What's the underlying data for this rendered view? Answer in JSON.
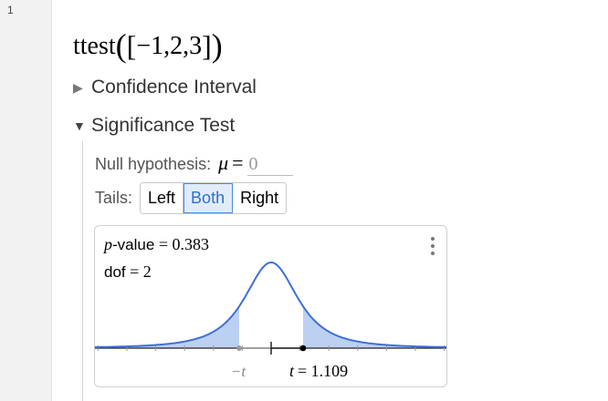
{
  "cell": {
    "line_number": "1"
  },
  "expression": {
    "fn": "ttest",
    "open_paren": "(",
    "open_bracket": "[",
    "args": "−1,2,3",
    "close_bracket": "]",
    "close_paren": ")"
  },
  "confidence_interval": {
    "label": "Confidence Interval",
    "expanded": false
  },
  "significance_test": {
    "label": "Significance Test",
    "expanded": true,
    "null_hypothesis": {
      "label": "Null hypothesis:",
      "symbol": "μ",
      "equals": "=",
      "value": "0"
    },
    "tails": {
      "label": "Tails:",
      "options": [
        "Left",
        "Both",
        "Right"
      ],
      "selected": "Both"
    },
    "result": {
      "p_symbol": "p",
      "p_label": "-value",
      "p_equals": "= 0.383",
      "dof_label": "dof",
      "dof_equals": "= 2",
      "t_value": 1.109,
      "dof": 2,
      "neg_t_label": "−t",
      "t_label_sym": "t",
      "t_label_val": "= 1.109"
    }
  },
  "colors": {
    "curve": "#3f6fd8",
    "fill": "#bcd0f2",
    "accent": "#2f6fcf"
  }
}
